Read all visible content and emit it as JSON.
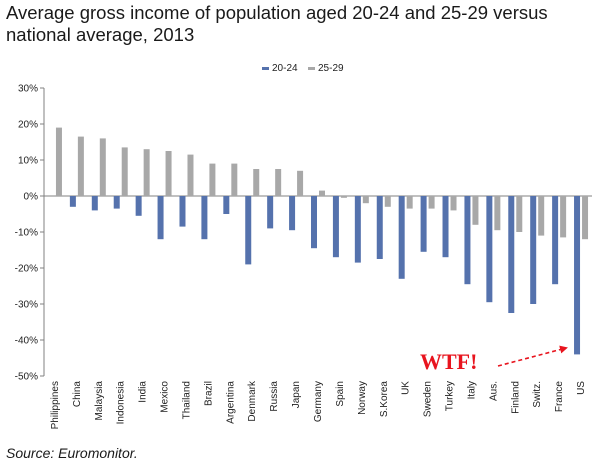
{
  "title": "Average gross income of population aged 20-24 and 25-29 versus national average, 2013",
  "source": "Source: Euromonitor.",
  "annotation": "WTF!",
  "colors": {
    "series_20_24": "#5572ad",
    "series_25_29": "#a8a8a8",
    "annotation": "#e8141e",
    "axis": "#808080"
  },
  "chart_data": {
    "type": "bar",
    "title": "Average gross income of population aged 20-24 and 25-29 versus national average, 2013",
    "xlabel": "",
    "ylabel": "",
    "ylim": [
      -50,
      30
    ],
    "yticks": [
      "30%",
      "20%",
      "10%",
      "0%",
      "-10%",
      "-20%",
      "-30%",
      "-40%",
      "-50%"
    ],
    "grid": false,
    "legend_position": "top-center",
    "categories": [
      "Philippines",
      "China",
      "Malaysia",
      "Indonesia",
      "India",
      "Mexico",
      "Thailand",
      "Brazil",
      "Argentina",
      "Denmark",
      "Russia",
      "Japan",
      "Germany",
      "Spain",
      "Norway",
      "S.Korea",
      "UK",
      "Sweden",
      "Turkey",
      "Italy",
      "Aus.",
      "Finland",
      "Switz.",
      "France",
      "US"
    ],
    "series": [
      {
        "name": "20-24",
        "values": [
          0,
          -3,
          -4,
          -3.5,
          -5.5,
          -12,
          -8.5,
          -12,
          -5,
          -19,
          -9,
          -9.5,
          -14.5,
          -17,
          -18.5,
          -17.5,
          -23,
          -15.5,
          -17,
          -24.5,
          -29.5,
          -32.5,
          -30,
          -24.5,
          -44
        ]
      },
      {
        "name": "25-29",
        "values": [
          19,
          16.5,
          16,
          13.5,
          13,
          12.5,
          11.5,
          9,
          9,
          7.5,
          7.5,
          7,
          1.5,
          -0.5,
          -2,
          -3,
          -3.5,
          -3.5,
          -4,
          -8,
          -9.5,
          -10,
          -11,
          -11.5,
          -12
        ]
      }
    ]
  }
}
